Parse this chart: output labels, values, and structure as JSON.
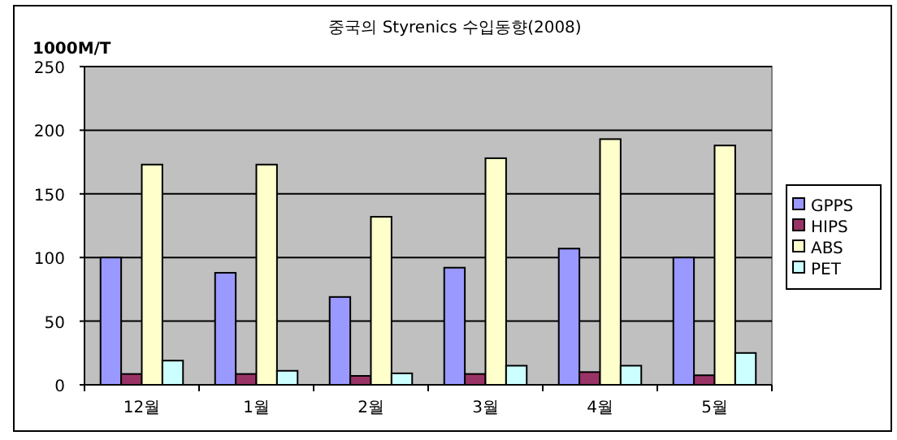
{
  "chart_data": {
    "type": "bar",
    "title": "중국의 Styrenics 수입동향(2008)",
    "ylabel": "1000M/T",
    "categories": [
      "12월",
      "1월",
      "2월",
      "3월",
      "4월",
      "5월"
    ],
    "series": [
      {
        "name": "GPPS",
        "color": "#9999ff",
        "values": [
          100,
          88,
          69,
          92,
          107,
          100
        ]
      },
      {
        "name": "HIPS",
        "color": "#993366",
        "values": [
          8.5,
          8.5,
          7,
          8.5,
          10,
          7.5
        ]
      },
      {
        "name": "ABS",
        "color": "#ffffcc",
        "values": [
          173,
          173,
          132,
          178,
          193,
          188
        ]
      },
      {
        "name": "PET",
        "color": "#ccffff",
        "values": [
          19,
          11,
          9,
          15,
          15,
          25
        ]
      }
    ],
    "ylim": [
      0,
      250
    ],
    "yticks": [
      0,
      50,
      100,
      150,
      200,
      250
    ],
    "grid": "y",
    "legend": "right"
  }
}
